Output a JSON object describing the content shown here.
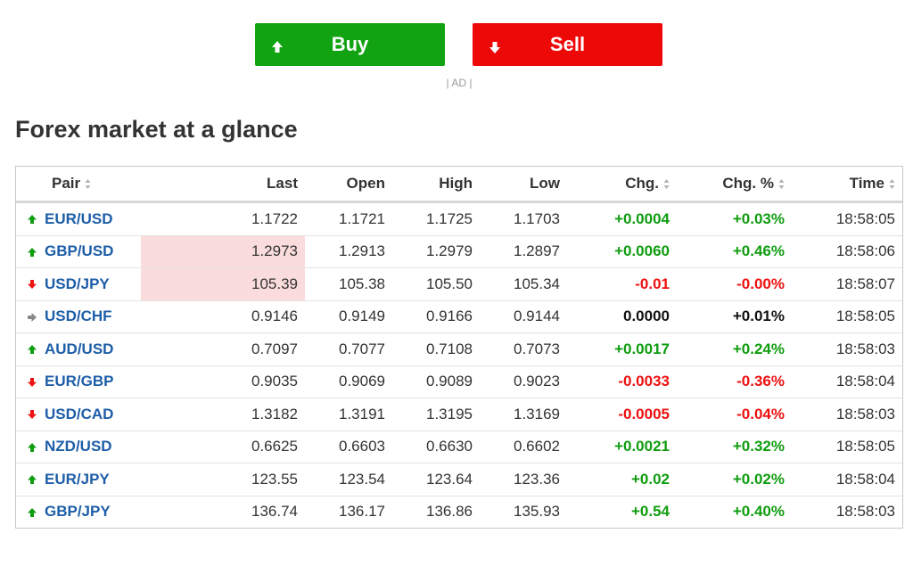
{
  "buttons": {
    "buy_label": "Buy",
    "sell_label": "Sell",
    "ad_label": "| AD |"
  },
  "colors": {
    "buy": "#12a312",
    "sell": "#ee0909",
    "up": "#0f9d0f",
    "down": "#ee1111",
    "link": "#1e5ea8",
    "highlight": "#fbdcdc"
  },
  "section": {
    "title": "Forex market at a glance"
  },
  "table": {
    "headers": {
      "pair": "Pair",
      "last": "Last",
      "open": "Open",
      "high": "High",
      "low": "Low",
      "chg": "Chg.",
      "chg_pct": "Chg. %",
      "time": "Time"
    },
    "rows": [
      {
        "dir": "up",
        "pair": "EUR/USD",
        "last": "1.1722",
        "open": "1.1721",
        "high": "1.1725",
        "low": "1.1703",
        "chg": "+0.0004",
        "chg_pct": "+0.03%",
        "time": "18:58:05",
        "chg_color": "pos",
        "pct_color": "pos",
        "highlight": false
      },
      {
        "dir": "up",
        "pair": "GBP/USD",
        "last": "1.2973",
        "open": "1.2913",
        "high": "1.2979",
        "low": "1.2897",
        "chg": "+0.0060",
        "chg_pct": "+0.46%",
        "time": "18:58:06",
        "chg_color": "pos",
        "pct_color": "pos",
        "highlight": true
      },
      {
        "dir": "down",
        "pair": "USD/JPY",
        "last": "105.39",
        "open": "105.38",
        "high": "105.50",
        "low": "105.34",
        "chg": "-0.01",
        "chg_pct": "-0.00%",
        "time": "18:58:07",
        "chg_color": "neg",
        "pct_color": "neg",
        "highlight": true
      },
      {
        "dir": "flat",
        "pair": "USD/CHF",
        "last": "0.9146",
        "open": "0.9149",
        "high": "0.9166",
        "low": "0.9144",
        "chg": "0.0000",
        "chg_pct": "+0.01%",
        "time": "18:58:05",
        "chg_color": "flat",
        "pct_color": "flat",
        "highlight": false
      },
      {
        "dir": "up",
        "pair": "AUD/USD",
        "last": "0.7097",
        "open": "0.7077",
        "high": "0.7108",
        "low": "0.7073",
        "chg": "+0.0017",
        "chg_pct": "+0.24%",
        "time": "18:58:03",
        "chg_color": "pos",
        "pct_color": "pos",
        "highlight": false
      },
      {
        "dir": "down",
        "pair": "EUR/GBP",
        "last": "0.9035",
        "open": "0.9069",
        "high": "0.9089",
        "low": "0.9023",
        "chg": "-0.0033",
        "chg_pct": "-0.36%",
        "time": "18:58:04",
        "chg_color": "neg",
        "pct_color": "neg",
        "highlight": false
      },
      {
        "dir": "down",
        "pair": "USD/CAD",
        "last": "1.3182",
        "open": "1.3191",
        "high": "1.3195",
        "low": "1.3169",
        "chg": "-0.0005",
        "chg_pct": "-0.04%",
        "time": "18:58:03",
        "chg_color": "neg",
        "pct_color": "neg",
        "highlight": false
      },
      {
        "dir": "up",
        "pair": "NZD/USD",
        "last": "0.6625",
        "open": "0.6603",
        "high": "0.6630",
        "low": "0.6602",
        "chg": "+0.0021",
        "chg_pct": "+0.32%",
        "time": "18:58:05",
        "chg_color": "pos",
        "pct_color": "pos",
        "highlight": false
      },
      {
        "dir": "up",
        "pair": "EUR/JPY",
        "last": "123.55",
        "open": "123.54",
        "high": "123.64",
        "low": "123.36",
        "chg": "+0.02",
        "chg_pct": "+0.02%",
        "time": "18:58:04",
        "chg_color": "pos",
        "pct_color": "pos",
        "highlight": false
      },
      {
        "dir": "up",
        "pair": "GBP/JPY",
        "last": "136.74",
        "open": "136.17",
        "high": "136.86",
        "low": "135.93",
        "chg": "+0.54",
        "chg_pct": "+0.40%",
        "time": "18:58:03",
        "chg_color": "pos",
        "pct_color": "pos",
        "highlight": false
      }
    ]
  }
}
